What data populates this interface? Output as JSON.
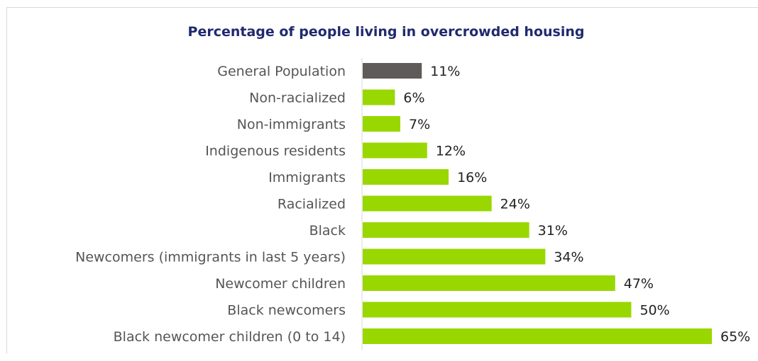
{
  "chart_data": {
    "type": "bar",
    "orientation": "horizontal",
    "title": "Percentage of people living in overcrowded housing",
    "xlabel": "",
    "ylabel": "",
    "value_suffix": "%",
    "xlim": [
      0,
      65
    ],
    "grid": false,
    "legend": "none",
    "categories": [
      "General Population",
      "Non-racialized",
      "Non-immigrants",
      "Indigenous residents",
      "Immigrants",
      "Racialized",
      "Black",
      "Newcomers (immigrants in last 5 years)",
      "Newcomer children",
      "Black newcomers",
      "Black newcomer children (0 to 14)"
    ],
    "values": [
      11,
      6,
      7,
      12,
      16,
      24,
      31,
      34,
      47,
      50,
      65
    ],
    "value_labels": [
      "11%",
      "6%",
      "7%",
      "12%",
      "16%",
      "24%",
      "31%",
      "34%",
      "47%",
      "50%",
      "65%"
    ],
    "colors": {
      "highlight": "#5f5b59",
      "default": "#99d700",
      "title": "#1f2a6e"
    },
    "highlight_index": 0
  }
}
